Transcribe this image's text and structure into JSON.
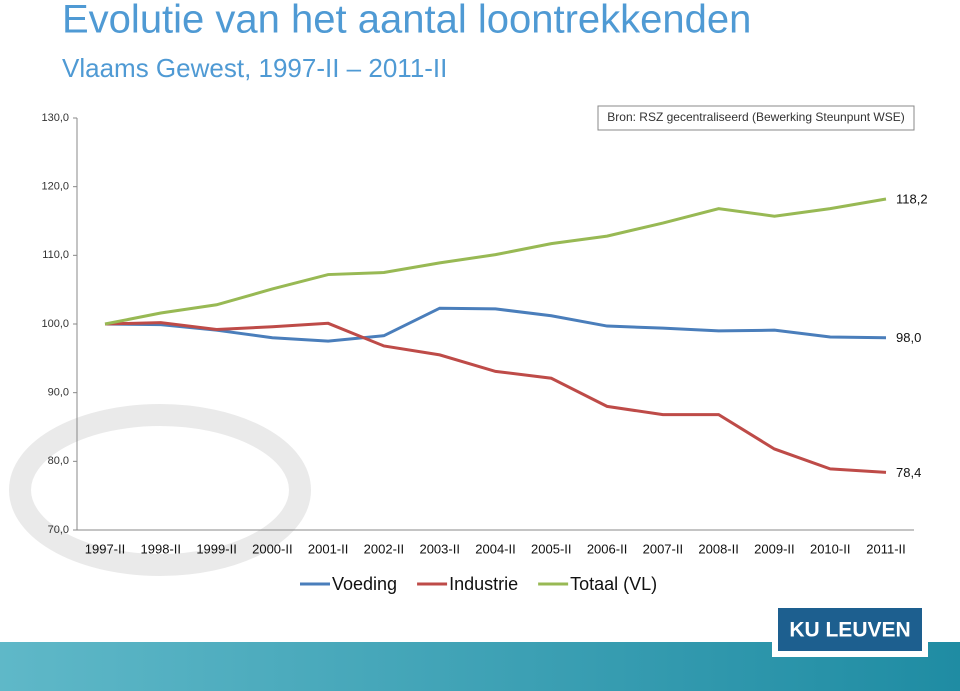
{
  "title": "Evolutie van het aantal loontrekkenden",
  "subtitle": "Vlaams Gewest, 1997-II – 2011-II",
  "source": "Bron: RSZ gecentraliseerd (Bewerking Steunpunt WSE)",
  "logo": "KU LEUVEN",
  "chart_data": {
    "type": "line",
    "categories": [
      "1997-II",
      "1998-II",
      "1999-II",
      "2000-II",
      "2001-II",
      "2002-II",
      "2003-II",
      "2004-II",
      "2005-II",
      "2006-II",
      "2007-II",
      "2008-II",
      "2009-II",
      "2010-II",
      "2011-II"
    ],
    "series": [
      {
        "name": "Voeding",
        "color": "#4a7ebb",
        "values": [
          100,
          99.9,
          99.1,
          98.0,
          97.5,
          98.3,
          102.3,
          102.2,
          101.2,
          99.7,
          99.4,
          99.0,
          99.1,
          98.1,
          98.0
        ],
        "value_labels": [
          null,
          null,
          null,
          null,
          null,
          null,
          null,
          null,
          null,
          null,
          null,
          null,
          null,
          null,
          "98,0"
        ]
      },
      {
        "name": "Industrie",
        "color": "#be4b48",
        "values": [
          100,
          100.2,
          99.2,
          99.6,
          100.1,
          96.8,
          95.5,
          93.1,
          92.1,
          88.0,
          86.8,
          86.8,
          81.8,
          78.9,
          78.4
        ],
        "value_labels": [
          null,
          null,
          null,
          null,
          null,
          null,
          null,
          null,
          null,
          null,
          null,
          null,
          null,
          null,
          "78,4"
        ]
      },
      {
        "name": "Totaal (VL)",
        "color": "#98b954",
        "values": [
          100,
          101.6,
          102.8,
          105.1,
          107.2,
          107.5,
          108.9,
          110.1,
          111.7,
          112.8,
          114.7,
          116.8,
          115.7,
          116.8,
          118.2
        ],
        "value_labels": [
          null,
          null,
          null,
          null,
          null,
          null,
          null,
          null,
          null,
          null,
          null,
          null,
          null,
          null,
          "118,2"
        ]
      }
    ],
    "ylim": [
      70,
      130
    ],
    "yticks": [
      {
        "value": 70,
        "label": "70,0"
      },
      {
        "value": 80,
        "label": "80,0"
      },
      {
        "value": 90,
        "label": "90,0"
      },
      {
        "value": 100,
        "label": "100,0"
      },
      {
        "value": 110,
        "label": "110,0"
      },
      {
        "value": 120,
        "label": "120,0"
      },
      {
        "value": 130,
        "label": "130,0"
      }
    ]
  }
}
